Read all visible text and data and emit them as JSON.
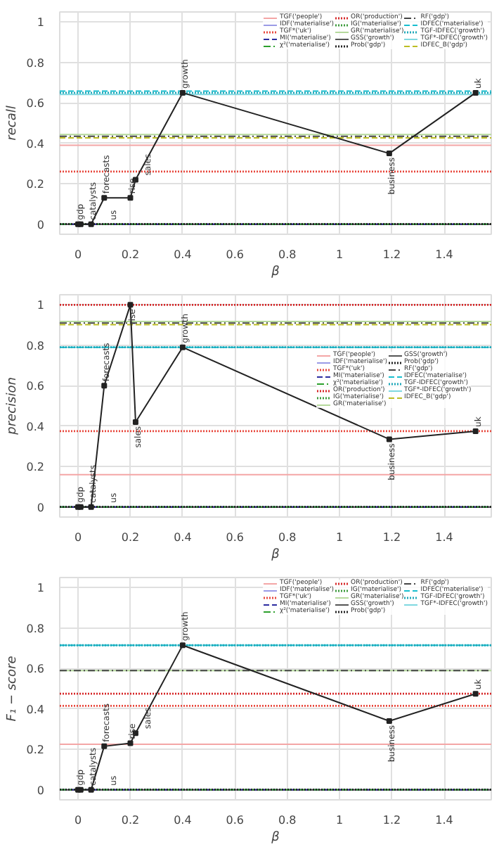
{
  "chart_data": [
    {
      "type": "line",
      "xlabel": "β",
      "ylabel": "recall",
      "xlim": [
        -0.07,
        1.58
      ],
      "ylim": [
        -0.05,
        1.05
      ],
      "xticks": [
        0,
        0.2,
        0.4,
        0.6,
        0.8,
        1,
        1.2,
        1.4
      ],
      "yticks": [
        0,
        0.2,
        0.4,
        0.6,
        0.8,
        1
      ],
      "grid": true,
      "legend": "top right",
      "marker": "square",
      "line_style": "solid",
      "x": [
        0,
        0.01,
        0.05,
        0.1,
        0.2,
        0.22,
        0.4,
        1.19,
        1.52
      ],
      "series": [
        {
          "color": "#222222",
          "values": [
            0,
            0,
            0,
            0.13,
            0.13,
            0.22,
            0.65,
            0.35,
            0.65
          ]
        }
      ],
      "annotations": [
        {
          "text": "gdp",
          "x": 0,
          "y": 0
        },
        {
          "text": "catalysts",
          "x": 0.01,
          "y": 0
        },
        {
          "text": "us",
          "x": 0.05,
          "y": 0
        },
        {
          "text": "forecasts",
          "x": 0.1,
          "y": 0.13
        },
        {
          "text": "rise",
          "x": 0.2,
          "y": 0.13
        },
        {
          "text": "sales",
          "x": 0.22,
          "y": 0.22
        },
        {
          "text": "growth",
          "x": 0.4,
          "y": 0.65
        },
        {
          "text": "business",
          "x": 1.19,
          "y": 0.35
        },
        {
          "text": "uk",
          "x": 1.52,
          "y": 0.65
        }
      ],
      "ref_lines": [
        {
          "axis": "y",
          "value": 0.39,
          "label": "TGF('people')",
          "color": "#f4a6a6",
          "line_style": "solid"
        },
        {
          "axis": "y",
          "value": 0,
          "label": "IDF('materialise')",
          "color": "#9a9ae6",
          "line_style": "solid"
        },
        {
          "axis": "y",
          "value": 0.26,
          "label": "TGF*('uk')",
          "color": "#e8473c",
          "line_style": "dotted"
        },
        {
          "axis": "y",
          "value": 0,
          "label": "MI('materialise')",
          "color": "#2c2ca0",
          "line_style": "dashed"
        },
        {
          "axis": "y",
          "value": 0,
          "label": "χ²('materialise')",
          "color": "#2ca02c",
          "line_style": "dashdot"
        },
        {
          "axis": "y",
          "value": 0,
          "label": "OR('production')",
          "color": "#d62728",
          "line_style": "dotted"
        },
        {
          "axis": "y",
          "value": 0,
          "label": "IG('materialise')",
          "color": "#3a9a3a",
          "line_style": "dotted"
        },
        {
          "axis": "y",
          "value": 0.443,
          "label": "GR('materialise')",
          "color": "#b5d99c",
          "line_style": "solid"
        },
        {
          "axis": "y",
          "value": 0,
          "label": "GSS('growth')",
          "color": "#555555",
          "line_style": "solid"
        },
        {
          "axis": "y",
          "value": 0,
          "label": "Prob('gdp')",
          "color": "#222222",
          "line_style": "dotted"
        },
        {
          "axis": "y",
          "value": 0.435,
          "label": "RF('gdp')",
          "color": "#444444",
          "line_style": "dashdot"
        },
        {
          "axis": "y",
          "value": 0.658,
          "label": "IDFEC('materialise')",
          "color": "#17becf",
          "line_style": "dashed"
        },
        {
          "axis": "y",
          "value": 0.65,
          "label": "TGF-IDFEC('growth')",
          "color": "#1fa8b9",
          "line_style": "dotted"
        },
        {
          "axis": "y",
          "value": 0.642,
          "label": "TGF*-IDFEC('growth')",
          "color": "#7fd8e0",
          "line_style": "solid"
        },
        {
          "axis": "y",
          "value": 0.427,
          "label": "IDFEC_B('gdp')",
          "color": "#bcbd22",
          "line_style": "dashed"
        }
      ]
    },
    {
      "type": "line",
      "xlabel": "β",
      "ylabel": "precision",
      "xlim": [
        -0.07,
        1.58
      ],
      "ylim": [
        -0.05,
        1.05
      ],
      "xticks": [
        0,
        0.2,
        0.4,
        0.6,
        0.8,
        1,
        1.2,
        1.4
      ],
      "yticks": [
        0,
        0.2,
        0.4,
        0.6,
        0.8,
        1
      ],
      "grid": true,
      "legend": "right",
      "marker": "square",
      "line_style": "solid",
      "x": [
        0,
        0.01,
        0.05,
        0.1,
        0.2,
        0.22,
        0.4,
        1.19,
        1.52
      ],
      "series": [
        {
          "color": "#222222",
          "values": [
            0,
            0,
            0,
            0.6,
            1.0,
            0.42,
            0.79,
            0.335,
            0.375
          ]
        }
      ],
      "annotations": [
        {
          "text": "gdp",
          "x": 0,
          "y": 0
        },
        {
          "text": "catalysts",
          "x": 0.01,
          "y": 0
        },
        {
          "text": "us",
          "x": 0.05,
          "y": 0
        },
        {
          "text": "forecasts",
          "x": 0.1,
          "y": 0.6
        },
        {
          "text": "rise",
          "x": 0.2,
          "y": 1.0
        },
        {
          "text": "sales",
          "x": 0.22,
          "y": 0.42
        },
        {
          "text": "growth",
          "x": 0.4,
          "y": 0.79
        },
        {
          "text": "business",
          "x": 1.19,
          "y": 0.335
        },
        {
          "text": "uk",
          "x": 1.52,
          "y": 0.375
        }
      ],
      "ref_lines": [
        {
          "axis": "y",
          "value": 0.16,
          "label": "TGF('people')",
          "color": "#f4a6a6",
          "line_style": "solid"
        },
        {
          "axis": "y",
          "value": 0,
          "label": "IDF('materialise')",
          "color": "#9a9ae6",
          "line_style": "solid"
        },
        {
          "axis": "y",
          "value": 0.375,
          "label": "TGF*('uk')",
          "color": "#e8473c",
          "line_style": "dotted"
        },
        {
          "axis": "y",
          "value": 0,
          "label": "MI('materialise')",
          "color": "#2c2ca0",
          "line_style": "dashed"
        },
        {
          "axis": "y",
          "value": 0,
          "label": "χ²('materialise')",
          "color": "#2ca02c",
          "line_style": "dashdot"
        },
        {
          "axis": "y",
          "value": 1.0,
          "label": "OR('production')",
          "color": "#d62728",
          "line_style": "dotted"
        },
        {
          "axis": "y",
          "value": 0,
          "label": "IG('materialise')",
          "color": "#3a9a3a",
          "line_style": "dotted"
        },
        {
          "axis": "y",
          "value": 0.918,
          "label": "GR('materialise')",
          "color": "#b5d99c",
          "line_style": "solid"
        },
        {
          "axis": "y",
          "value": 0,
          "label": "GSS('growth')",
          "color": "#555555",
          "line_style": "solid"
        },
        {
          "axis": "y",
          "value": 0,
          "label": "Prob('gdp')",
          "color": "#222222",
          "line_style": "dotted"
        },
        {
          "axis": "y",
          "value": 0.91,
          "label": "RF('gdp')",
          "color": "#444444",
          "line_style": "dashdot"
        },
        {
          "axis": "y",
          "value": 0.79,
          "label": "IDFEC('materialise')",
          "color": "#17becf",
          "line_style": "dashed"
        },
        {
          "axis": "y",
          "value": 0.79,
          "label": "TGF-IDFEC('growth')",
          "color": "#1fa8b9",
          "line_style": "dotted"
        },
        {
          "axis": "y",
          "value": 0.79,
          "label": "TGF*-IDFEC('growth')",
          "color": "#7fd8e0",
          "line_style": "solid"
        },
        {
          "axis": "y",
          "value": 0.902,
          "label": "IDFEC_B('gdp')",
          "color": "#bcbd22",
          "line_style": "dashed"
        }
      ]
    },
    {
      "type": "line",
      "xlabel": "β",
      "ylabel": "F₁ − score",
      "xlim": [
        -0.07,
        1.58
      ],
      "ylim": [
        -0.05,
        1.05
      ],
      "xticks": [
        0,
        0.2,
        0.4,
        0.6,
        0.8,
        1,
        1.2,
        1.4
      ],
      "yticks": [
        0,
        0.2,
        0.4,
        0.6,
        0.8,
        1
      ],
      "grid": true,
      "legend": "top right",
      "marker": "square",
      "line_style": "solid",
      "x": [
        0,
        0.01,
        0.05,
        0.1,
        0.2,
        0.22,
        0.4,
        1.19,
        1.52
      ],
      "series": [
        {
          "color": "#222222",
          "values": [
            0,
            0,
            0,
            0.215,
            0.23,
            0.28,
            0.715,
            0.34,
            0.475
          ]
        }
      ],
      "annotations": [
        {
          "text": "gdp",
          "x": 0,
          "y": 0
        },
        {
          "text": "catalysts",
          "x": 0.01,
          "y": 0
        },
        {
          "text": "us",
          "x": 0.05,
          "y": 0
        },
        {
          "text": "forecasts",
          "x": 0.1,
          "y": 0.215
        },
        {
          "text": "rise",
          "x": 0.2,
          "y": 0.23
        },
        {
          "text": "sales",
          "x": 0.22,
          "y": 0.28
        },
        {
          "text": "growth",
          "x": 0.4,
          "y": 0.715
        },
        {
          "text": "business",
          "x": 1.19,
          "y": 0.34
        },
        {
          "text": "uk",
          "x": 1.52,
          "y": 0.475
        }
      ],
      "ref_lines": [
        {
          "axis": "y",
          "value": 0.225,
          "label": "TGF('people')",
          "color": "#f4a6a6",
          "line_style": "solid"
        },
        {
          "axis": "y",
          "value": 0,
          "label": "IDF('materialise')",
          "color": "#9a9ae6",
          "line_style": "solid"
        },
        {
          "axis": "y",
          "value": 0.415,
          "label": "TGF*('uk')",
          "color": "#e8473c",
          "line_style": "dotted"
        },
        {
          "axis": "y",
          "value": 0,
          "label": "MI('materialise')",
          "color": "#2c2ca0",
          "line_style": "dashed"
        },
        {
          "axis": "y",
          "value": 0,
          "label": "χ²('materialise')",
          "color": "#2ca02c",
          "line_style": "dashdot"
        },
        {
          "axis": "y",
          "value": 0.475,
          "label": "OR('production')",
          "color": "#d62728",
          "line_style": "dotted"
        },
        {
          "axis": "y",
          "value": 0,
          "label": "IG('materialise')",
          "color": "#3a9a3a",
          "line_style": "dotted"
        },
        {
          "axis": "y",
          "value": 0.59,
          "label": "GR('materialise')",
          "color": "#b5d99c",
          "line_style": "solid"
        },
        {
          "axis": "y",
          "value": 0,
          "label": "GSS('growth')",
          "color": "#555555",
          "line_style": "solid"
        },
        {
          "axis": "y",
          "value": 0,
          "label": "Prob('gdp')",
          "color": "#222222",
          "line_style": "dotted"
        },
        {
          "axis": "y",
          "value": 0.59,
          "label": "RF('gdp')",
          "color": "#444444",
          "line_style": "dashdot"
        },
        {
          "axis": "y",
          "value": 0.715,
          "label": "IDFEC('materialise')",
          "color": "#17becf",
          "line_style": "dashed"
        },
        {
          "axis": "y",
          "value": 0.715,
          "label": "TGF-IDFEC('growth')",
          "color": "#1fa8b9",
          "line_style": "dotted"
        },
        {
          "axis": "y",
          "value": 0.715,
          "label": "TGF*-IDFEC('growth')",
          "color": "#7fd8e0",
          "line_style": "solid"
        }
      ]
    }
  ]
}
